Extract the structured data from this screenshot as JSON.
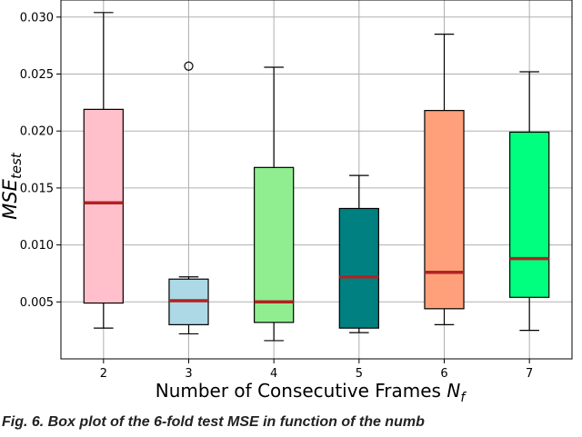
{
  "chart_data": {
    "type": "boxplot",
    "xlabel_main": "Number of Consecutive Frames ",
    "xlabel_symbol": "N",
    "xlabel_sub": "f",
    "ylabel_main": "MSE",
    "ylabel_sub": "test",
    "categories": [
      "2",
      "3",
      "4",
      "5",
      "6",
      "7"
    ],
    "ylim": [
      0.0,
      0.0315
    ],
    "yticks": [
      0.005,
      0.01,
      0.015,
      0.02,
      0.025,
      0.03
    ],
    "ytick_labels": [
      "0.005",
      "0.010",
      "0.015",
      "0.020",
      "0.025",
      "0.030"
    ],
    "grid": true,
    "boxes": [
      {
        "category": "2",
        "whisker_low": 0.0027,
        "q1": 0.0049,
        "median": 0.0137,
        "q3": 0.0219,
        "whisker_high": 0.0304,
        "outliers": [],
        "color": "#ffc0cb"
      },
      {
        "category": "3",
        "whisker_low": 0.0022,
        "q1": 0.003,
        "median": 0.0051,
        "q3": 0.007,
        "whisker_high": 0.0072,
        "outliers": [
          0.0257
        ],
        "color": "#add8e6"
      },
      {
        "category": "4",
        "whisker_low": 0.0016,
        "q1": 0.0032,
        "median": 0.005,
        "q3": 0.0168,
        "whisker_high": 0.0256,
        "outliers": [],
        "color": "#90ee90"
      },
      {
        "category": "5",
        "whisker_low": 0.0023,
        "q1": 0.0027,
        "median": 0.0072,
        "q3": 0.0132,
        "whisker_high": 0.0161,
        "outliers": [],
        "color": "#008080"
      },
      {
        "category": "6",
        "whisker_low": 0.003,
        "q1": 0.0044,
        "median": 0.0076,
        "q3": 0.0218,
        "whisker_high": 0.0285,
        "outliers": [],
        "color": "#ffa07a"
      },
      {
        "category": "7",
        "whisker_low": 0.0025,
        "q1": 0.0054,
        "median": 0.0088,
        "q3": 0.0199,
        "whisker_high": 0.0252,
        "outliers": [],
        "color": "#00ff7f"
      }
    ],
    "median_color": "#b22222"
  },
  "caption": "Fig. 6.   Box plot of the 6-fold test MSE in function of the numb"
}
